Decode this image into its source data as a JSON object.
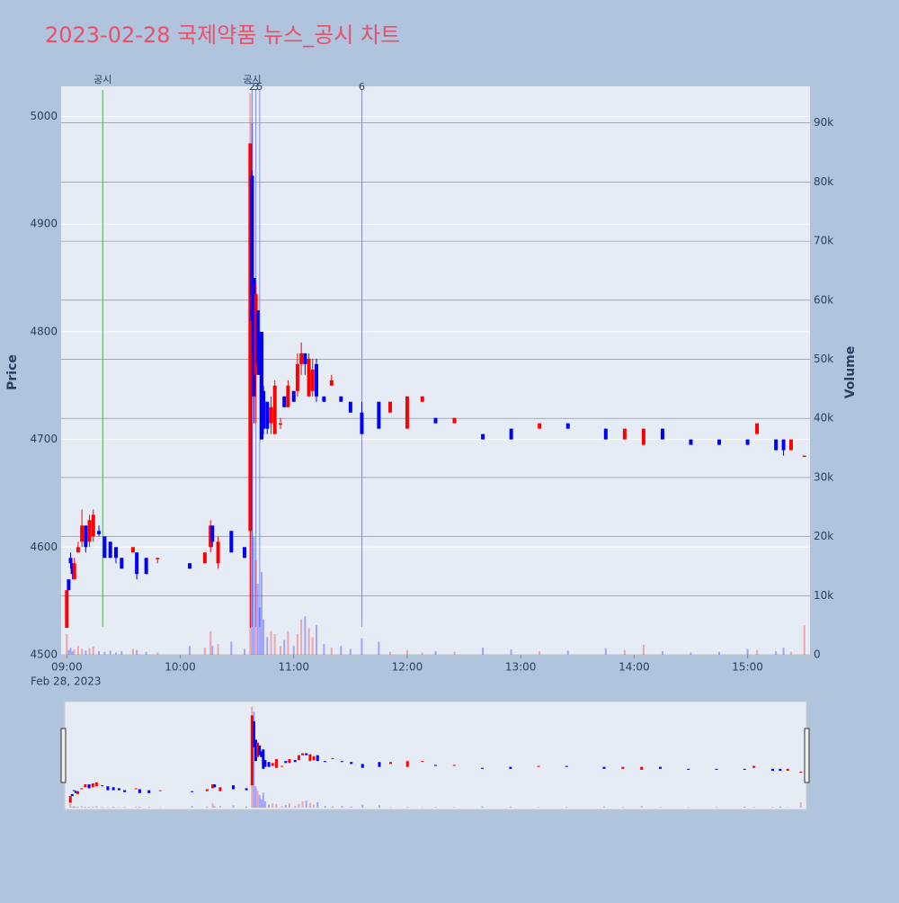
{
  "chart_data": {
    "type": "candlestick",
    "title": "2023-02-28 국제약품 뉴스_공시 차트",
    "ylabel": "Price",
    "y2label": "Volume",
    "date_label": "Feb 28, 2023",
    "increasing_color": "#ff0000",
    "decreasing_color": "#0000ff",
    "xlim": [
      "2023-02-28 08:57",
      "2023-02-28 15:33"
    ],
    "xticks": [
      {
        "value": "2023-02-28 09:00",
        "label": "09:00"
      },
      {
        "value": "2023-02-28 10:00",
        "label": "10:00"
      },
      {
        "value": "2023-02-28 11:00",
        "label": "11:00"
      },
      {
        "value": "2023-02-28 12:00",
        "label": "12:00"
      },
      {
        "value": "2023-02-28 13:00",
        "label": "13:00"
      },
      {
        "value": "2023-02-28 14:00",
        "label": "14:00"
      },
      {
        "value": "2023-02-28 15:00",
        "label": "15:00"
      }
    ],
    "ylim": [
      4500,
      5028
    ],
    "yticks": [
      4500,
      4600,
      4700,
      4800,
      4900,
      5000
    ],
    "y2lim": [
      0,
      96200
    ],
    "y2ticks": [
      0,
      {
        "value": 10000,
        "label": "10k"
      },
      {
        "value": 20000,
        "label": "20k"
      },
      {
        "value": 30000,
        "label": "30k"
      },
      {
        "value": 40000,
        "label": "40k"
      },
      {
        "value": 50000,
        "label": "50k"
      },
      {
        "value": 60000,
        "label": "60k"
      },
      {
        "value": 70000,
        "label": "70k"
      },
      {
        "value": 80000,
        "label": "80k"
      },
      {
        "value": 90000,
        "label": "90k"
      }
    ],
    "annotations": [
      {
        "x": "2023-02-28 09:19",
        "label": "공시",
        "color": "#4caf50"
      },
      {
        "x": "2023-02-28 10:38",
        "label": "공시",
        "color": "#4caf50"
      },
      {
        "x": "2023-02-28 10:38",
        "label": "2",
        "color": "#7f8fd8"
      },
      {
        "x": "2023-02-28 10:40",
        "label": "3",
        "color": "#7f8fd8"
      },
      {
        "x": "2023-02-28 10:42",
        "label": "5",
        "color": "#7f8fd8"
      },
      {
        "x": "2023-02-28 11:36",
        "label": "6",
        "color": "#7f8fd8"
      }
    ],
    "candles": {
      "x": [
        "2023-02-28 09:00",
        "2023-02-28 09:01",
        "2023-02-28 09:02",
        "2023-02-28 09:03",
        "2023-02-28 09:04",
        "2023-02-28 09:06",
        "2023-02-28 09:08",
        "2023-02-28 09:10",
        "2023-02-28 09:12",
        "2023-02-28 09:14",
        "2023-02-28 09:17",
        "2023-02-28 09:20",
        "2023-02-28 09:23",
        "2023-02-28 09:26",
        "2023-02-28 09:29",
        "2023-02-28 09:35",
        "2023-02-28 09:37",
        "2023-02-28 09:42",
        "2023-02-28 09:48",
        "2023-02-28 10:05",
        "2023-02-28 10:13",
        "2023-02-28 10:16",
        "2023-02-28 10:17",
        "2023-02-28 10:20",
        "2023-02-28 10:27",
        "2023-02-28 10:34",
        "2023-02-28 10:37",
        "2023-02-28 10:38",
        "2023-02-28 10:39",
        "2023-02-28 10:40",
        "2023-02-28 10:41",
        "2023-02-28 10:42",
        "2023-02-28 10:43",
        "2023-02-28 10:44",
        "2023-02-28 10:46",
        "2023-02-28 10:48",
        "2023-02-28 10:50",
        "2023-02-28 10:53",
        "2023-02-28 10:55",
        "2023-02-28 10:57",
        "2023-02-28 11:00",
        "2023-02-28 11:02",
        "2023-02-28 11:04",
        "2023-02-28 11:06",
        "2023-02-28 11:08",
        "2023-02-28 11:10",
        "2023-02-28 11:12",
        "2023-02-28 11:16",
        "2023-02-28 11:20",
        "2023-02-28 11:25",
        "2023-02-28 11:30",
        "2023-02-28 11:36",
        "2023-02-28 11:45",
        "2023-02-28 11:51",
        "2023-02-28 12:00",
        "2023-02-28 12:08",
        "2023-02-28 12:15",
        "2023-02-28 12:25",
        "2023-02-28 12:40",
        "2023-02-28 12:55",
        "2023-02-28 13:10",
        "2023-02-28 13:25",
        "2023-02-28 13:45",
        "2023-02-28 13:55",
        "2023-02-28 14:05",
        "2023-02-28 14:15",
        "2023-02-28 14:30",
        "2023-02-28 14:45",
        "2023-02-28 15:00",
        "2023-02-28 15:05",
        "2023-02-28 15:15",
        "2023-02-28 15:19",
        "2023-02-28 15:23",
        "2023-02-28 15:30"
      ],
      "open": [
        4525,
        4570,
        4590,
        4585,
        4570,
        4595,
        4605,
        4620,
        4605,
        4610,
        4615,
        4610,
        4605,
        4600,
        4590,
        4595,
        4595,
        4590,
        4590,
        4585,
        4585,
        4600,
        4620,
        4585,
        4615,
        4600,
        4615,
        4945,
        4850,
        4760,
        4820,
        4790,
        4800,
        4745,
        4735,
        4715,
        4705,
        4715,
        4740,
        4730,
        4745,
        4745,
        4770,
        4780,
        4740,
        4745,
        4770,
        4740,
        4750,
        4740,
        4735,
        4725,
        4735,
        4725,
        4710,
        4735,
        4720,
        4715,
        4705,
        4710,
        4710,
        4715,
        4710,
        4700,
        4695,
        4710,
        4700,
        4700,
        4700,
        4705,
        4700,
        4700,
        4690,
        4685
      ],
      "high": [
        4560,
        4570,
        4595,
        4585,
        4590,
        4605,
        4635,
        4620,
        4630,
        4635,
        4620,
        4610,
        4605,
        4600,
        4590,
        4600,
        4595,
        4590,
        4590,
        4585,
        4595,
        4625,
        4620,
        4610,
        4615,
        4600,
        4975,
        4950,
        4850,
        4845,
        4820,
        4800,
        4800,
        4750,
        4735,
        4740,
        4755,
        4720,
        4740,
        4755,
        4745,
        4780,
        4790,
        4780,
        4780,
        4775,
        4775,
        4740,
        4760,
        4740,
        4735,
        4735,
        4735,
        4735,
        4740,
        4740,
        4720,
        4720,
        4705,
        4710,
        4715,
        4715,
        4710,
        4710,
        4710,
        4710,
        4700,
        4700,
        4700,
        4715,
        4700,
        4700,
        4700,
        4685
      ],
      "low": [
        4525,
        4560,
        4580,
        4570,
        4570,
        4595,
        4600,
        4595,
        4600,
        4605,
        4610,
        4590,
        4590,
        4585,
        4580,
        4595,
        4570,
        4575,
        4585,
        4580,
        4585,
        4595,
        4600,
        4580,
        4595,
        4590,
        4525,
        4780,
        4715,
        4715,
        4760,
        4760,
        4700,
        4705,
        4705,
        4705,
        4705,
        4710,
        4730,
        4730,
        4735,
        4740,
        4760,
        4760,
        4740,
        4740,
        4735,
        4735,
        4750,
        4735,
        4725,
        4705,
        4710,
        4725,
        4710,
        4735,
        4715,
        4715,
        4700,
        4700,
        4710,
        4710,
        4700,
        4700,
        4695,
        4700,
        4695,
        4695,
        4695,
        4705,
        4690,
        4685,
        4690,
        4685
      ],
      "close": [
        4560,
        4560,
        4585,
        4575,
        4585,
        4600,
        4620,
        4600,
        4625,
        4630,
        4612,
        4590,
        4590,
        4590,
        4580,
        4600,
        4575,
        4575,
        4590,
        4580,
        4595,
        4620,
        4605,
        4605,
        4595,
        4590,
        4975,
        4810,
        4740,
        4835,
        4770,
        4760,
        4700,
        4710,
        4710,
        4730,
        4750,
        4715,
        4730,
        4750,
        4735,
        4770,
        4780,
        4770,
        4775,
        4765,
        4740,
        4735,
        4755,
        4735,
        4725,
        4705,
        4710,
        4735,
        4740,
        4740,
        4715,
        4720,
        4700,
        4700,
        4715,
        4710,
        4700,
        4710,
        4710,
        4700,
        4695,
        4695,
        4695,
        4715,
        4690,
        4690,
        4700,
        4685
      ],
      "volume": [
        3500,
        800,
        1200,
        600,
        900,
        1500,
        1000,
        700,
        1100,
        1400,
        600,
        500,
        700,
        400,
        600,
        1000,
        800,
        500,
        400,
        1500,
        1200,
        4000,
        1500,
        1800,
        2200,
        1000,
        95000,
        90000,
        20000,
        16000,
        12000,
        8000,
        14000,
        6000,
        3000,
        4000,
        3500,
        1500,
        2500,
        4000,
        1500,
        3500,
        6000,
        6500,
        4500,
        3000,
        5000,
        1800,
        1200,
        1500,
        1000,
        2800,
        2200,
        500,
        800,
        400,
        600,
        500,
        1200,
        900,
        600,
        700,
        1100,
        800,
        1700,
        600,
        400,
        500,
        1000,
        800,
        600,
        1200,
        500,
        5000
      ]
    }
  }
}
